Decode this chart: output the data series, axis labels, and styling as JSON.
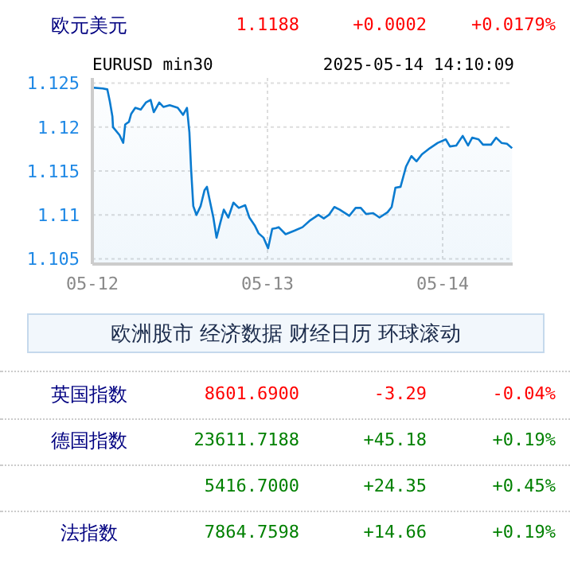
{
  "chart_data": [
    {
      "type": "area",
      "title": "欧元美元",
      "subtitle": "EURUSD min30",
      "annotations": [
        "1.1188",
        "+0.0002",
        "+0.0179%",
        "2025-05-14 14:10:09"
      ],
      "xlim": [
        "2025-05-12T00:00",
        "2025-05-14T09:36"
      ],
      "xticks": [
        {
          "value": "2025-05-12",
          "label": "05-12"
        },
        {
          "value": "2025-05-13",
          "label": "05-13"
        },
        {
          "value": "2025-05-14",
          "label": "05-14"
        }
      ],
      "ylim": [
        1.1044,
        1.1256
      ],
      "yticks": [
        1.105,
        1.11,
        1.115,
        1.12,
        1.125
      ],
      "grid": true,
      "series": [
        {
          "color": "#0a7bd0",
          "x": [
            "2025-05-12T00:00",
            "2025-05-12T01:26",
            "2025-05-12T02:03",
            "2025-05-12T02:24",
            "2025-05-12T02:45",
            "2025-05-12T02:50",
            "2025-05-12T03:43",
            "2025-05-12T04:14",
            "2025-05-12T04:30",
            "2025-05-12T05:01",
            "2025-05-12T05:19",
            "2025-05-12T05:53",
            "2025-05-12T06:38",
            "2025-05-12T07:20",
            "2025-05-12T07:59",
            "2025-05-12T08:25",
            "2025-05-12T09:10",
            "2025-05-12T09:44",
            "2025-05-12T10:36",
            "2025-05-12T11:42",
            "2025-05-12T12:26",
            "2025-05-12T12:58",
            "2025-05-12T13:18",
            "2025-05-12T13:32",
            "2025-05-12T13:50",
            "2025-05-12T14:16",
            "2025-05-12T14:50",
            "2025-05-12T15:22",
            "2025-05-12T15:42",
            "2025-05-12T16:03",
            "2025-05-12T16:35",
            "2025-05-12T17:01",
            "2025-05-12T17:32",
            "2025-05-12T18:01",
            "2025-05-12T18:38",
            "2025-05-12T19:20",
            "2025-05-12T20:04",
            "2025-05-12T20:57",
            "2025-05-12T21:31",
            "2025-05-12T22:15",
            "2025-05-12T22:47",
            "2025-05-12T23:28",
            "2025-05-13T00:05",
            "2025-05-13T00:39",
            "2025-05-13T01:11",
            "2025-05-13T01:32",
            "2025-05-13T02:29",
            "2025-05-13T03:42",
            "2025-05-13T04:48",
            "2025-05-13T05:53",
            "2025-05-13T06:59",
            "2025-05-13T07:43",
            "2025-05-13T08:25",
            "2025-05-13T09:10",
            "2025-05-13T09:54",
            "2025-05-13T11:13",
            "2025-05-13T12:05",
            "2025-05-13T12:47",
            "2025-05-13T13:31",
            "2025-05-13T14:29",
            "2025-05-13T15:21",
            "2025-05-13T16:27",
            "2025-05-13T17:01",
            "2025-05-13T17:32",
            "2025-05-13T18:14",
            "2025-05-13T18:59",
            "2025-05-13T19:43",
            "2025-05-13T20:25",
            "2025-05-13T21:10",
            "2025-05-13T22:15",
            "2025-05-13T23:20",
            "2025-05-14T00:26",
            "2025-05-14T01:00",
            "2025-05-14T01:52",
            "2025-05-14T02:45",
            "2025-05-14T03:29",
            "2025-05-14T04:03",
            "2025-05-14T04:56",
            "2025-05-14T05:32",
            "2025-05-14T06:38",
            "2025-05-14T07:20",
            "2025-05-14T08:04",
            "2025-05-14T08:49",
            "2025-05-14T09:31"
          ],
          "values": [
            1.1245,
            1.1244,
            1.1243,
            1.1229,
            1.1212,
            1.12,
            1.1191,
            1.1182,
            1.1203,
            1.1206,
            1.1215,
            1.1222,
            1.122,
            1.1228,
            1.1231,
            1.1217,
            1.1228,
            1.1223,
            1.1225,
            1.1222,
            1.1214,
            1.1222,
            1.1194,
            1.1152,
            1.111,
            1.11,
            1.111,
            1.1128,
            1.1132,
            1.1118,
            1.1097,
            1.1074,
            1.1091,
            1.1106,
            1.1097,
            1.1114,
            1.1108,
            1.1111,
            1.1097,
            1.1088,
            1.1079,
            1.1074,
            1.1062,
            1.1084,
            1.1085,
            1.1086,
            1.1078,
            1.1082,
            1.1086,
            1.1094,
            1.11,
            1.1096,
            1.11,
            1.1109,
            1.1106,
            1.1099,
            1.1108,
            1.1108,
            1.1101,
            1.1102,
            1.1097,
            1.1103,
            1.1109,
            1.1131,
            1.1132,
            1.1155,
            1.1167,
            1.1161,
            1.1169,
            1.1176,
            1.1182,
            1.1186,
            1.1178,
            1.1179,
            1.119,
            1.1179,
            1.1188,
            1.1186,
            1.118,
            1.118,
            1.1188,
            1.1182,
            1.1181,
            1.1176
          ]
        }
      ]
    },
    {
      "type": "other",
      "title": "欧洲股市 经济数据 财经日历 环球滚动",
      "y_categories": [
        "英国指数",
        "德国指数",
        null,
        "法指数"
      ],
      "cell_labels": [
        [
          "8601.6900",
          "-3.29",
          "-0.04%"
        ],
        [
          "23611.7188",
          "+45.18",
          "+0.19%"
        ],
        [
          "5416.7000",
          "+24.35",
          "+0.45%"
        ],
        [
          "7864.7598",
          "+14.66",
          "+0.19%"
        ]
      ],
      "colors": [
        "#ff0000",
        "#008000",
        "#008000",
        "#008000"
      ]
    }
  ]
}
